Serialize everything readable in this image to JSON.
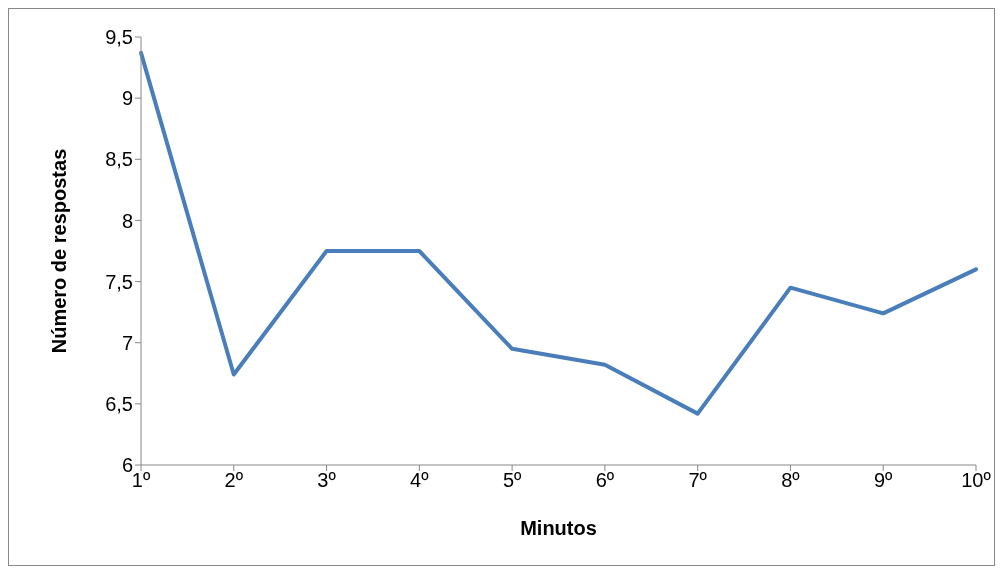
{
  "chart_data": {
    "type": "line",
    "xlabel": "Minutos",
    "ylabel": "Número de respostas",
    "categories": [
      "1º",
      "2º",
      "3º",
      "4º",
      "5º",
      "6º",
      "7º",
      "8º",
      "9º",
      "10º"
    ],
    "series": [
      {
        "color": "#4a7ebb",
        "values": [
          9.37,
          6.74,
          7.75,
          7.75,
          6.95,
          6.82,
          6.42,
          7.45,
          7.24,
          7.6
        ]
      }
    ],
    "ylim": [
      6,
      9.5
    ],
    "yticks": [
      6,
      {
        "value": 6.5,
        "label": "6,5"
      },
      7,
      {
        "value": 7.5,
        "label": "7,5"
      },
      8,
      {
        "value": 8.5,
        "label": "8,5"
      },
      9,
      {
        "value": 9.5,
        "label": "9,5"
      }
    ],
    "grid": false,
    "legend": false,
    "marker": "none",
    "line_style": "solid"
  }
}
